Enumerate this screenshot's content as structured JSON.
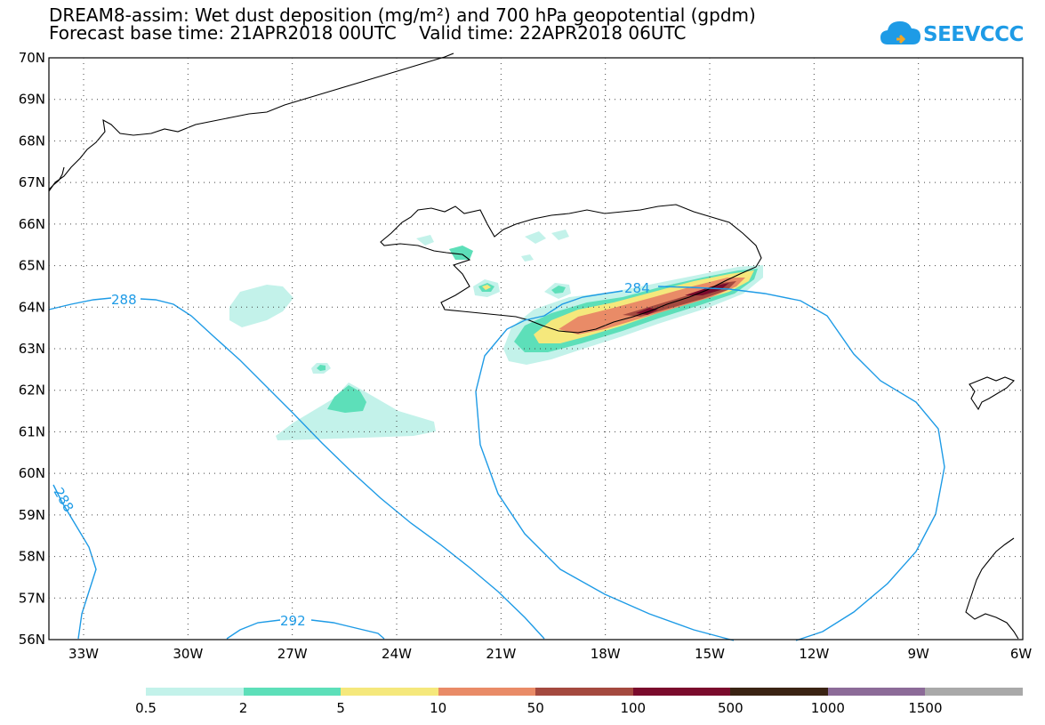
{
  "header": {
    "title_line1": "DREAM8-assim: Wet dust deposition (mg/m²) and 700 hPa geopotential (gpdm)",
    "title_line2": "Forecast base time: 21APR2018 00UTC    Valid time: 22APR2018 06UTC",
    "logo_text": "SEEVCCC",
    "logo_icon": "cloud-icon"
  },
  "map": {
    "lat_labels": [
      "70N",
      "69N",
      "68N",
      "67N",
      "66N",
      "65N",
      "64N",
      "63N",
      "62N",
      "61N",
      "60N",
      "59N",
      "58N",
      "57N",
      "56N"
    ],
    "lon_labels": [
      "33W",
      "30W",
      "27W",
      "24W",
      "21W",
      "18W",
      "15W",
      "12W",
      "9W",
      "6W"
    ],
    "contour_labels": [
      "288",
      "284",
      "292",
      "288"
    ],
    "contour_color": "#1e9be6",
    "coast_color": "#000000"
  },
  "legend": {
    "colors": [
      "#c3f2ea",
      "#5ddfb9",
      "#f5e87c",
      "#e98b67",
      "#a4493f",
      "#7a0b2c",
      "#3a2313",
      "#8c6b98",
      "#a9a9a9"
    ],
    "labels": [
      "0.5",
      "2",
      "5",
      "10",
      "50",
      "100",
      "500",
      "1000",
      "1500"
    ]
  }
}
